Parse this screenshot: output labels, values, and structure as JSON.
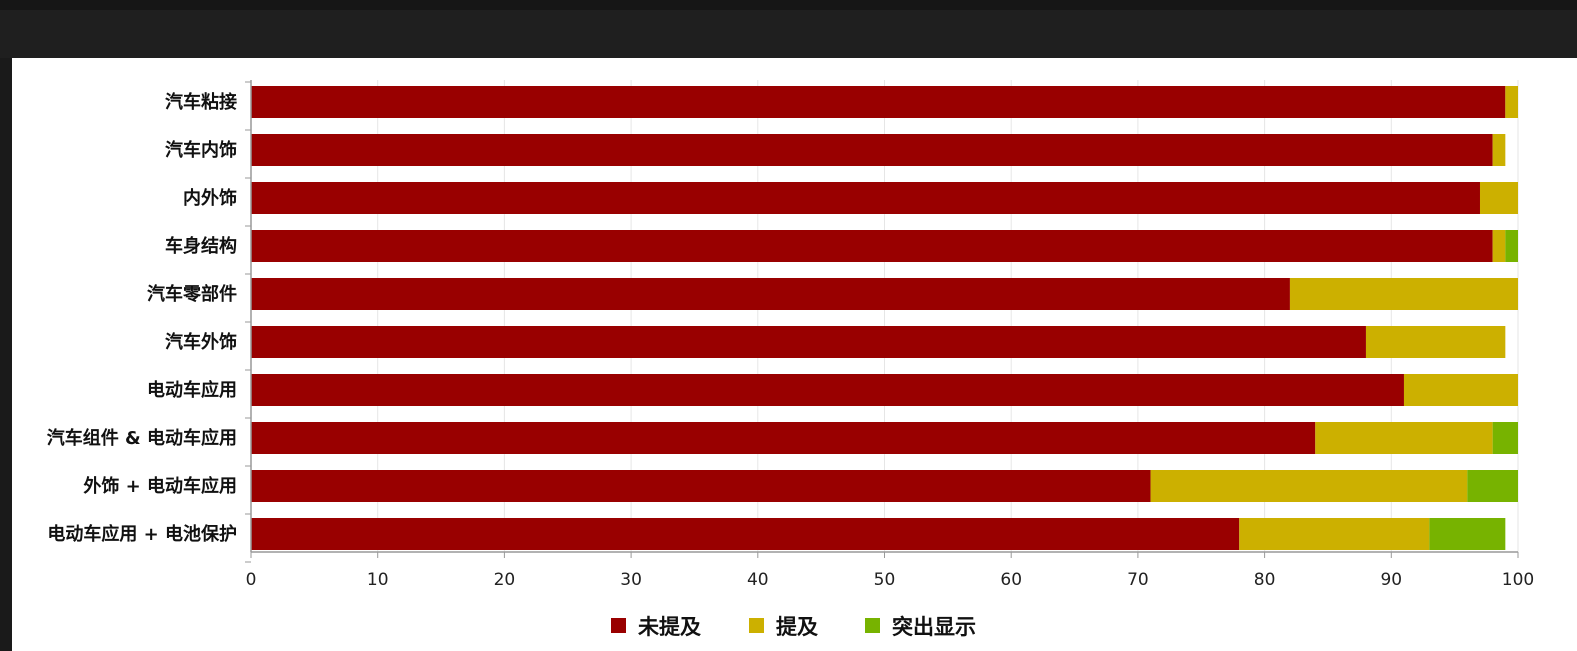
{
  "chart_data": {
    "type": "bar",
    "orientation": "horizontal",
    "stacked": true,
    "categories": [
      "汽车粘接",
      "汽车内饰",
      "内外饰",
      "车身结构",
      "汽车零部件",
      "汽车外饰",
      "电动车应用",
      "汽车组件 & 电动车应用",
      "外饰 + 电动车应用",
      "电动车应用 + 电池保护"
    ],
    "series": [
      {
        "name": "未提及",
        "color": "#990000",
        "values": [
          99,
          98,
          97,
          98,
          82,
          88,
          91,
          84,
          71,
          78
        ]
      },
      {
        "name": "提及",
        "color": "#ccb000",
        "values": [
          1,
          1,
          3,
          1,
          18,
          11,
          9,
          14,
          25,
          15
        ]
      },
      {
        "name": "突出显示",
        "color": "#77b300",
        "values": [
          0,
          0,
          0,
          1,
          0,
          0,
          0,
          2,
          4,
          6
        ]
      }
    ],
    "xlim": [
      0,
      100
    ],
    "xticks": [
      0,
      10,
      20,
      30,
      40,
      50,
      60,
      70,
      80,
      90,
      100
    ],
    "grid": true,
    "legend_position": "bottom"
  }
}
